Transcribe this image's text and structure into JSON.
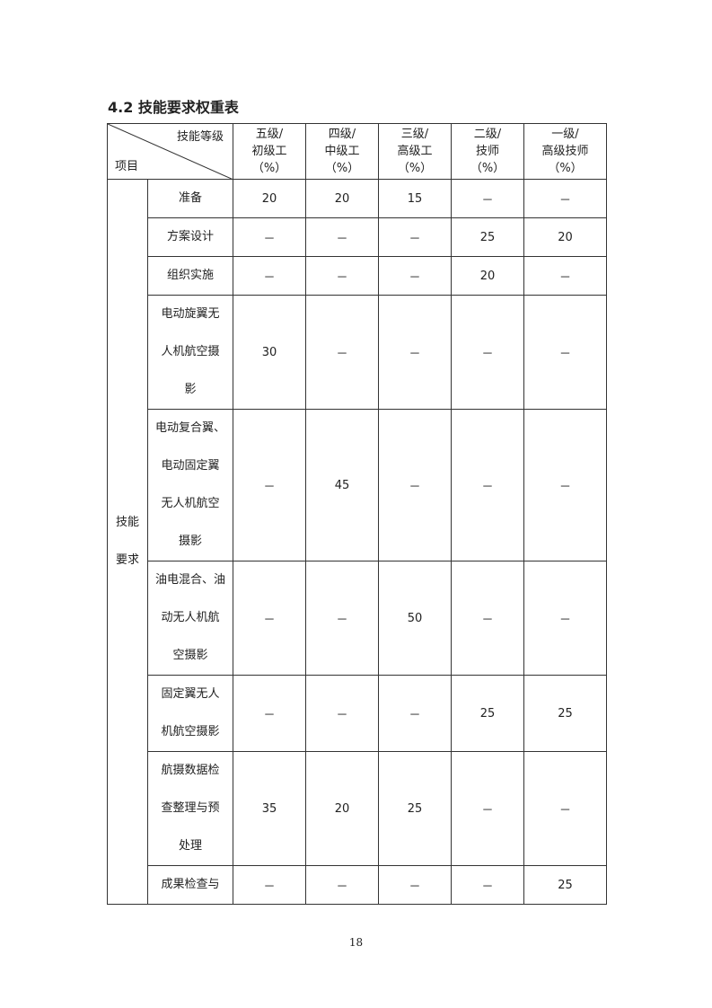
{
  "title": "4.2 技能要求权重表",
  "header": {
    "diag_top": "技能等级",
    "diag_bottom": "项目",
    "levels": [
      [
        "五级/",
        "初级工",
        "（%）"
      ],
      [
        "四级/",
        "中级工",
        "（%）"
      ],
      [
        "三级/",
        "高级工",
        "（%）"
      ],
      [
        "二级/",
        "技师",
        "（%）"
      ],
      [
        "一级/",
        "高级技师",
        "（%）"
      ]
    ]
  },
  "category": [
    "技能",
    "要求"
  ],
  "rows": [
    {
      "item": [
        "准备"
      ],
      "values": [
        "20",
        "20",
        "15",
        "－",
        "－"
      ]
    },
    {
      "item": [
        "方案设计"
      ],
      "values": [
        "－",
        "－",
        "－",
        "25",
        "20"
      ]
    },
    {
      "item": [
        "组织实施"
      ],
      "values": [
        "－",
        "－",
        "－",
        "20",
        "－"
      ]
    },
    {
      "item": [
        "电动旋翼无",
        "人机航空摄",
        "影"
      ],
      "values": [
        "30",
        "－",
        "－",
        "－",
        "－"
      ]
    },
    {
      "item": [
        "电动复合翼、",
        "电动固定翼",
        "无人机航空",
        "摄影"
      ],
      "values": [
        "－",
        "45",
        "－",
        "－",
        "－"
      ]
    },
    {
      "item": [
        "油电混合、油",
        "动无人机航",
        "空摄影"
      ],
      "values": [
        "－",
        "－",
        "50",
        "－",
        "－"
      ]
    },
    {
      "item": [
        "固定翼无人",
        "机航空摄影"
      ],
      "values": [
        "－",
        "－",
        "－",
        "25",
        "25"
      ]
    },
    {
      "item": [
        "航摄数据检",
        "查整理与预",
        "处理"
      ],
      "values": [
        "35",
        "20",
        "25",
        "－",
        "－"
      ]
    },
    {
      "item": [
        "成果检查与"
      ],
      "values": [
        "－",
        "－",
        "－",
        "－",
        "25"
      ]
    }
  ],
  "page_number": "18"
}
